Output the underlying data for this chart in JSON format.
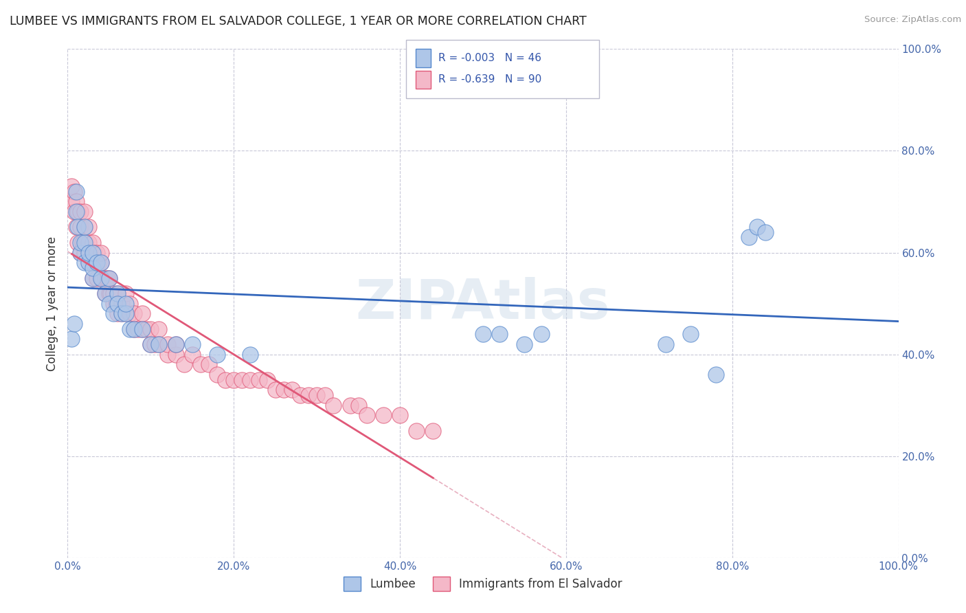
{
  "title": "LUMBEE VS IMMIGRANTS FROM EL SALVADOR COLLEGE, 1 YEAR OR MORE CORRELATION CHART",
  "source": "Source: ZipAtlas.com",
  "ylabel": "College, 1 year or more",
  "xlim": [
    0.0,
    1.0
  ],
  "ylim": [
    0.0,
    1.0
  ],
  "xticks": [
    0.0,
    0.2,
    0.4,
    0.6,
    0.8,
    1.0
  ],
  "yticks": [
    0.0,
    0.2,
    0.4,
    0.6,
    0.8,
    1.0
  ],
  "xtick_labels": [
    "0.0%",
    "20.0%",
    "40.0%",
    "60.0%",
    "80.0%",
    "100.0%"
  ],
  "ytick_labels": [
    "0.0%",
    "20.0%",
    "40.0%",
    "60.0%",
    "80.0%",
    "100.0%"
  ],
  "lumbee_color": "#aec6e8",
  "salvador_color": "#f4b8c8",
  "lumbee_edge": "#5588cc",
  "salvador_edge": "#e05878",
  "trend_lumbee_color": "#3366bb",
  "trend_salvador_solid": "#e05878",
  "trend_salvador_dash": "#e8b0c0",
  "R_lumbee": -0.003,
  "N_lumbee": 46,
  "R_salvador": -0.639,
  "N_salvador": 90,
  "legend_lumbee": "Lumbee",
  "legend_salvador": "Immigrants from El Salvador",
  "background_color": "#ffffff",
  "grid_color": "#c8c8d8",
  "watermark": "ZIPAtlas",
  "lumbee_x": [
    0.005,
    0.008,
    0.01,
    0.01,
    0.012,
    0.015,
    0.015,
    0.02,
    0.02,
    0.02,
    0.025,
    0.025,
    0.03,
    0.03,
    0.03,
    0.035,
    0.04,
    0.04,
    0.045,
    0.05,
    0.05,
    0.055,
    0.06,
    0.06,
    0.065,
    0.07,
    0.07,
    0.075,
    0.08,
    0.09,
    0.1,
    0.11,
    0.13,
    0.15,
    0.18,
    0.22,
    0.5,
    0.52,
    0.55,
    0.57,
    0.72,
    0.75,
    0.78,
    0.82,
    0.83,
    0.84
  ],
  "lumbee_y": [
    0.43,
    0.46,
    0.68,
    0.72,
    0.65,
    0.6,
    0.62,
    0.58,
    0.62,
    0.65,
    0.58,
    0.6,
    0.55,
    0.57,
    0.6,
    0.58,
    0.55,
    0.58,
    0.52,
    0.55,
    0.5,
    0.48,
    0.52,
    0.5,
    0.48,
    0.48,
    0.5,
    0.45,
    0.45,
    0.45,
    0.42,
    0.42,
    0.42,
    0.42,
    0.4,
    0.4,
    0.44,
    0.44,
    0.42,
    0.44,
    0.42,
    0.44,
    0.36,
    0.63,
    0.65,
    0.64
  ],
  "salvador_x": [
    0.005,
    0.005,
    0.008,
    0.008,
    0.01,
    0.01,
    0.012,
    0.012,
    0.015,
    0.015,
    0.015,
    0.018,
    0.02,
    0.02,
    0.02,
    0.022,
    0.025,
    0.025,
    0.025,
    0.028,
    0.03,
    0.03,
    0.03,
    0.032,
    0.035,
    0.035,
    0.035,
    0.038,
    0.04,
    0.04,
    0.04,
    0.042,
    0.045,
    0.045,
    0.048,
    0.05,
    0.05,
    0.052,
    0.055,
    0.055,
    0.058,
    0.06,
    0.06,
    0.065,
    0.065,
    0.07,
    0.07,
    0.075,
    0.075,
    0.08,
    0.08,
    0.085,
    0.09,
    0.09,
    0.095,
    0.1,
    0.1,
    0.105,
    0.11,
    0.11,
    0.12,
    0.12,
    0.13,
    0.13,
    0.14,
    0.15,
    0.16,
    0.17,
    0.18,
    0.19,
    0.2,
    0.21,
    0.22,
    0.23,
    0.24,
    0.25,
    0.26,
    0.27,
    0.28,
    0.29,
    0.3,
    0.31,
    0.32,
    0.34,
    0.35,
    0.36,
    0.38,
    0.4,
    0.42,
    0.44
  ],
  "salvador_y": [
    0.7,
    0.73,
    0.68,
    0.72,
    0.65,
    0.7,
    0.62,
    0.68,
    0.6,
    0.65,
    0.68,
    0.62,
    0.6,
    0.65,
    0.68,
    0.62,
    0.58,
    0.62,
    0.65,
    0.6,
    0.55,
    0.58,
    0.62,
    0.6,
    0.58,
    0.55,
    0.6,
    0.58,
    0.55,
    0.58,
    0.6,
    0.55,
    0.52,
    0.55,
    0.55,
    0.52,
    0.55,
    0.52,
    0.5,
    0.52,
    0.5,
    0.48,
    0.52,
    0.5,
    0.48,
    0.48,
    0.52,
    0.48,
    0.5,
    0.45,
    0.48,
    0.45,
    0.45,
    0.48,
    0.45,
    0.42,
    0.45,
    0.42,
    0.45,
    0.42,
    0.4,
    0.42,
    0.4,
    0.42,
    0.38,
    0.4,
    0.38,
    0.38,
    0.36,
    0.35,
    0.35,
    0.35,
    0.35,
    0.35,
    0.35,
    0.33,
    0.33,
    0.33,
    0.32,
    0.32,
    0.32,
    0.32,
    0.3,
    0.3,
    0.3,
    0.28,
    0.28,
    0.28,
    0.25,
    0.25
  ]
}
